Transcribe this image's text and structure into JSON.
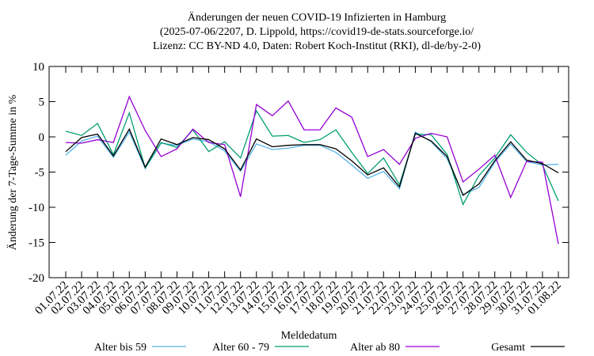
{
  "chart_data": {
    "type": "line",
    "title": [
      "Änderungen der neuen COVID-19 Infizierten in Hamburg",
      "(2025-07-06/2207, D. Lippold, https://covid19-de-stats.sourceforge.io/",
      "Lizenz: CC BY-ND 4.0, Daten: Robert Koch-Institut (RKI), dl-de/by-2-0)"
    ],
    "x_label": "Meldedatum",
    "y_label": "Änderung der 7-Tage-Summe in %",
    "categories": [
      "01.07.22",
      "02.07.22",
      "03.07.22",
      "04.07.22",
      "05.07.22",
      "06.07.22",
      "07.07.22",
      "08.07.22",
      "09.07.22",
      "10.07.22",
      "11.07.22",
      "12.07.22",
      "13.07.22",
      "14.07.22",
      "15.07.22",
      "16.07.22",
      "17.07.22",
      "18.07.22",
      "19.07.22",
      "20.07.22",
      "21.07.22",
      "22.07.22",
      "23.07.22",
      "24.07.22",
      "25.07.22",
      "26.07.22",
      "27.07.22",
      "28.07.22",
      "29.07.22",
      "30.07.22",
      "31.07.22",
      "01.08.22"
    ],
    "series": [
      {
        "name": "Alter bis 59",
        "color": "#56b4e9",
        "values": [
          -2.6,
          -0.6,
          0.1,
          -2.9,
          0.7,
          -4.5,
          -0.9,
          -1.2,
          -0.3,
          -0.7,
          -2.0,
          -4.9,
          -1.0,
          -1.8,
          -1.6,
          -1.2,
          -1.2,
          -2.2,
          -4.0,
          -5.9,
          -4.9,
          -7.4,
          0.7,
          -0.7,
          -3.1,
          -8.2,
          -7.2,
          -3.6,
          -1.0,
          -3.5,
          -4.0,
          -3.9
        ]
      },
      {
        "name": "Alter 60 - 79",
        "color": "#009e73",
        "values": [
          0.8,
          0.2,
          1.9,
          -2.5,
          3.4,
          -4.4,
          -0.8,
          -1.5,
          1.0,
          -2.1,
          -0.7,
          -3.0,
          3.7,
          0.1,
          0.2,
          -0.8,
          -0.4,
          1.0,
          -2.2,
          -5.2,
          -3.0,
          -6.8,
          0.4,
          0.3,
          -2.5,
          -9.6,
          -5.5,
          -3.0,
          0.3,
          -2.2,
          -4.0,
          -9.1
        ]
      },
      {
        "name": "Alter ab 80",
        "color": "#9400d3",
        "values": [
          -0.8,
          -0.9,
          -0.4,
          -0.8,
          5.7,
          0.9,
          -2.8,
          -1.7,
          1.1,
          -0.8,
          -1.1,
          -8.5,
          4.6,
          3.0,
          5.1,
          1.0,
          1.0,
          4.1,
          2.8,
          -2.8,
          -1.8,
          -3.9,
          -0.2,
          0.5,
          0.0,
          -6.4,
          -4.6,
          -2.6,
          -8.6,
          -3.5,
          -3.6,
          -15.2
        ]
      },
      {
        "name": "Gesamt",
        "color": "#000000",
        "values": [
          -2.1,
          -0.1,
          0.4,
          -2.7,
          1.1,
          -4.3,
          -0.3,
          -1.1,
          -0.1,
          -0.4,
          -1.7,
          -4.7,
          -0.3,
          -1.4,
          -1.2,
          -1.1,
          -1.1,
          -1.7,
          -3.4,
          -5.4,
          -4.4,
          -7.1,
          0.5,
          -0.6,
          -2.8,
          -8.3,
          -6.7,
          -3.4,
          -0.7,
          -3.3,
          -3.8,
          -5.1
        ]
      }
    ],
    "ylim": [
      -20,
      10
    ],
    "yticks": [
      -20,
      -15,
      -10,
      -5,
      0,
      5,
      10
    ],
    "grid": false,
    "legend": "bottom"
  }
}
